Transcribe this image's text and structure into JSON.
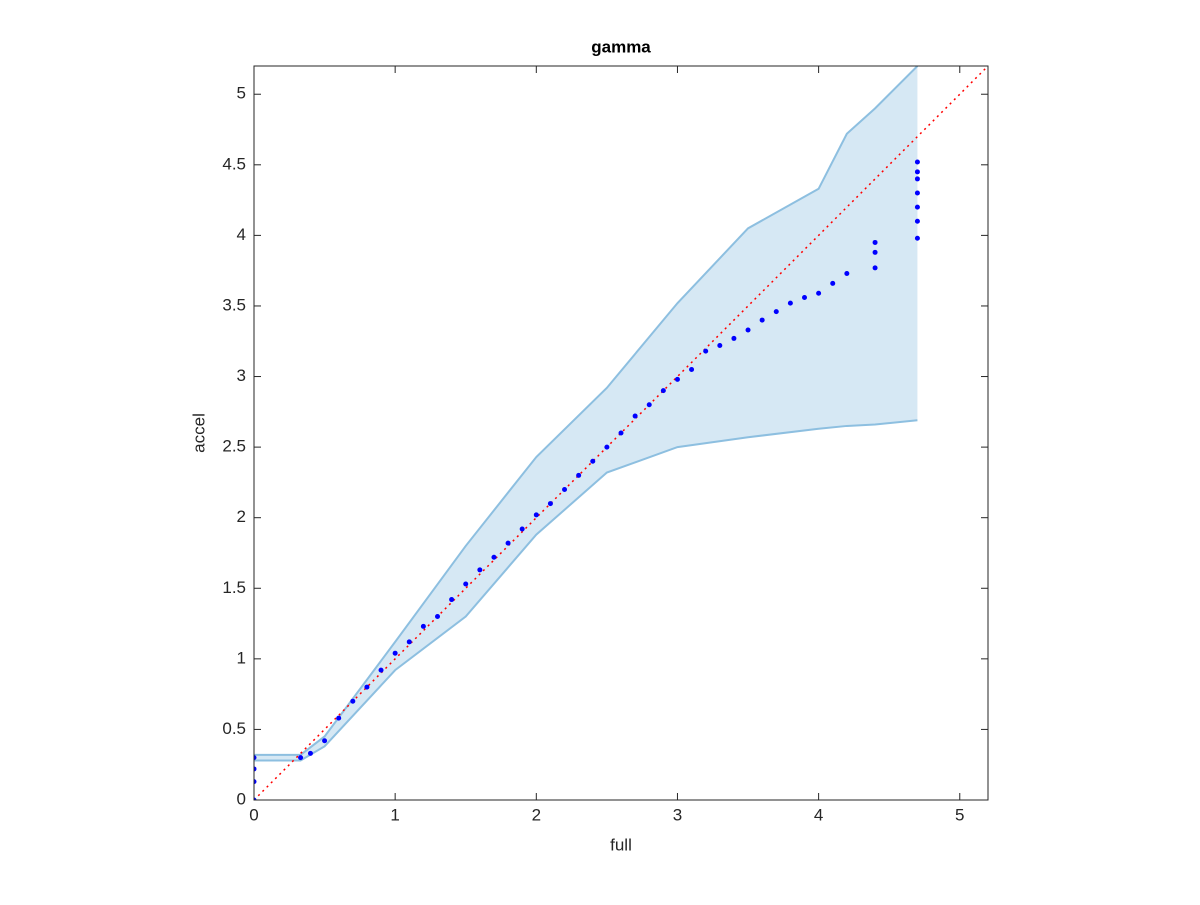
{
  "chart_data": {
    "type": "scatter",
    "title": "gamma",
    "x_label": "full",
    "y_label": "accel",
    "xlim": [
      0,
      5.2
    ],
    "ylim": [
      0,
      5.2
    ],
    "xticks": [
      0,
      1,
      2,
      3,
      4,
      5
    ],
    "yticks": [
      0,
      0.5,
      1,
      1.5,
      2,
      2.5,
      3,
      3.5,
      4,
      4.5,
      5
    ],
    "points": {
      "color": "#0000ff",
      "x": [
        0,
        0,
        0,
        0,
        0.33,
        0.4,
        0.5,
        0.6,
        0.7,
        0.8,
        0.9,
        1.0,
        1.1,
        1.2,
        1.3,
        1.4,
        1.5,
        1.6,
        1.7,
        1.8,
        1.9,
        2.0,
        2.1,
        2.2,
        2.3,
        2.4,
        2.5,
        2.6,
        2.7,
        2.8,
        2.9,
        3.0,
        3.1,
        3.2,
        3.3,
        3.4,
        3.5,
        3.6,
        3.7,
        3.8,
        3.9,
        4.0,
        4.1,
        4.2,
        4.4,
        4.4,
        4.4,
        4.7,
        4.7,
        4.7,
        4.7,
        4.7,
        4.7,
        4.7
      ],
      "values": [
        0,
        0.13,
        0.22,
        0.3,
        0.3,
        0.33,
        0.42,
        0.58,
        0.7,
        0.8,
        0.92,
        1.04,
        1.12,
        1.23,
        1.3,
        1.42,
        1.53,
        1.63,
        1.72,
        1.82,
        1.92,
        2.02,
        2.1,
        2.2,
        2.3,
        2.4,
        2.5,
        2.6,
        2.72,
        2.8,
        2.9,
        2.98,
        3.05,
        3.18,
        3.22,
        3.27,
        3.33,
        3.4,
        3.46,
        3.52,
        3.56,
        3.59,
        3.66,
        3.73,
        3.77,
        3.88,
        3.95,
        3.98,
        4.1,
        4.2,
        4.3,
        4.4,
        4.45,
        4.52
      ]
    },
    "band": {
      "color": "#d6e8f4",
      "edge_color": "#8dbfe0",
      "x": [
        0,
        0.33,
        0.5,
        1.0,
        1.5,
        2.0,
        2.5,
        3.0,
        3.5,
        4.0,
        4.2,
        4.4,
        4.7
      ],
      "lower": [
        0.28,
        0.28,
        0.38,
        0.92,
        1.3,
        1.88,
        2.32,
        2.5,
        2.57,
        2.63,
        2.65,
        2.66,
        2.69
      ],
      "upper": [
        0.32,
        0.32,
        0.45,
        1.12,
        1.8,
        2.43,
        2.92,
        3.52,
        4.05,
        4.33,
        4.72,
        4.9,
        5.2
      ]
    },
    "reference_line": {
      "color": "#ff0000",
      "x": [
        0,
        5.2
      ],
      "values": [
        0,
        5.2
      ]
    }
  }
}
